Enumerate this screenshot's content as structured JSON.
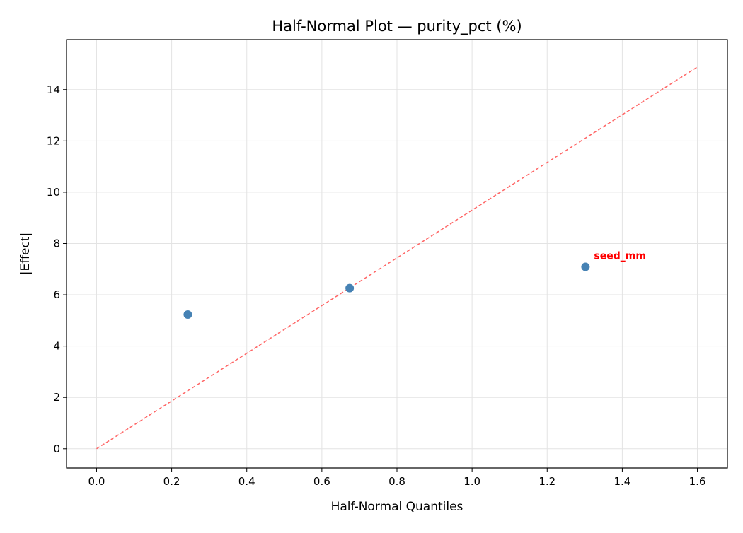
{
  "chart_data": {
    "type": "scatter",
    "title": "Half-Normal Plot — purity_pct (%)",
    "xlabel": "Half-Normal Quantiles",
    "ylabel": "|Effect|",
    "xlim": [
      -0.08,
      1.68
    ],
    "ylim": [
      -0.75,
      15.95
    ],
    "xticks": [
      0.0,
      0.2,
      0.4,
      0.6,
      0.8,
      1.0,
      1.2,
      1.4,
      1.6
    ],
    "xtick_labels": [
      "0.0",
      "0.2",
      "0.4",
      "0.6",
      "0.8",
      "1.0",
      "1.2",
      "1.4",
      "1.6"
    ],
    "yticks": [
      0,
      2,
      4,
      6,
      8,
      10,
      12,
      14
    ],
    "ytick_labels": [
      "0",
      "2",
      "4",
      "6",
      "8",
      "10",
      "12",
      "14"
    ],
    "grid": true,
    "points": [
      {
        "x": 0.243,
        "y": 5.23,
        "label": ""
      },
      {
        "x": 0.674,
        "y": 6.26,
        "label": ""
      },
      {
        "x": 1.302,
        "y": 7.09,
        "label": "seed_mm"
      }
    ],
    "reference_line": {
      "x": [
        0,
        1.6
      ],
      "y": [
        0,
        14.88
      ],
      "style": "dashed"
    },
    "colors": {
      "points": "#4682b4",
      "reference_line": "#ff6666",
      "annotation": "#ff0000",
      "grid": "#e3e3e3"
    }
  }
}
